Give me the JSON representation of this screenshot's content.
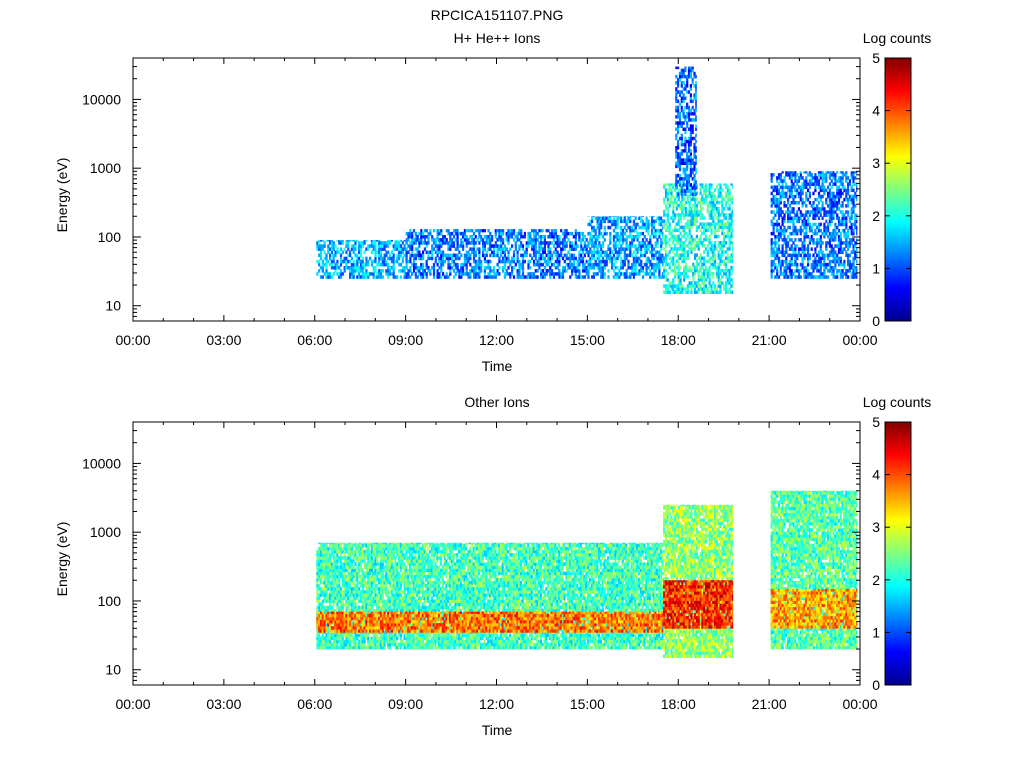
{
  "title": "RPCICA151107.PNG",
  "chart_data": [
    {
      "type": "heatmap",
      "title": "H+ He++ Ions",
      "xlabel": "Time",
      "ylabel": "Energy (eV)",
      "xlim": [
        "00:00",
        "24:00"
      ],
      "ylim": [
        6,
        40000
      ],
      "yscale": "log",
      "x_ticks": [
        "00:00",
        "03:00",
        "06:00",
        "09:00",
        "12:00",
        "15:00",
        "18:00",
        "21:00",
        "00:00"
      ],
      "y_ticks": [
        "10",
        "100",
        "1000",
        "10000"
      ],
      "colorbar": {
        "label": "Log counts",
        "range": [
          0,
          5
        ],
        "ticks": [
          "0",
          "1",
          "2",
          "3",
          "4",
          "5"
        ],
        "colormap": "jet"
      },
      "data_coverage_hours": [
        [
          6.05,
          19.8
        ],
        [
          21.05,
          23.9
        ]
      ],
      "bands": [
        {
          "t_start": 6.05,
          "t_end": 9.0,
          "e_min": 25,
          "e_max": 90,
          "log_counts": 1.5
        },
        {
          "t_start": 9.0,
          "t_end": 15.0,
          "e_min": 25,
          "e_max": 130,
          "log_counts": 1.2
        },
        {
          "t_start": 15.0,
          "t_end": 17.5,
          "e_min": 25,
          "e_max": 200,
          "log_counts": 1.4
        },
        {
          "t_start": 17.5,
          "t_end": 19.8,
          "e_min": 15,
          "e_max": 600,
          "log_counts": 2.0
        },
        {
          "t_start": 17.9,
          "t_end": 18.6,
          "e_min": 400,
          "e_max": 30000,
          "log_counts": 1.1
        },
        {
          "t_start": 21.05,
          "t_end": 23.9,
          "e_min": 25,
          "e_max": 900,
          "log_counts": 1.2
        }
      ]
    },
    {
      "type": "heatmap",
      "title": "Other Ions",
      "xlabel": "Time",
      "ylabel": "Energy (eV)",
      "xlim": [
        "00:00",
        "24:00"
      ],
      "ylim": [
        6,
        40000
      ],
      "yscale": "log",
      "x_ticks": [
        "00:00",
        "03:00",
        "06:00",
        "09:00",
        "12:00",
        "15:00",
        "18:00",
        "21:00",
        "00:00"
      ],
      "y_ticks": [
        "10",
        "100",
        "1000",
        "10000"
      ],
      "colorbar": {
        "label": "Log counts",
        "range": [
          0,
          5
        ],
        "ticks": [
          "0",
          "1",
          "2",
          "3",
          "4",
          "5"
        ],
        "colormap": "jet"
      },
      "data_coverage_hours": [
        [
          6.05,
          19.8
        ],
        [
          21.05,
          23.9
        ]
      ],
      "bands": [
        {
          "t_start": 6.05,
          "t_end": 17.5,
          "e_min": 20,
          "e_max": 700,
          "log_counts": 2.2
        },
        {
          "t_start": 6.05,
          "t_end": 17.5,
          "e_min": 35,
          "e_max": 70,
          "log_counts": 3.8
        },
        {
          "t_start": 17.5,
          "t_end": 19.8,
          "e_min": 15,
          "e_max": 2500,
          "log_counts": 2.6
        },
        {
          "t_start": 17.5,
          "t_end": 19.8,
          "e_min": 40,
          "e_max": 200,
          "log_counts": 4.2
        },
        {
          "t_start": 21.05,
          "t_end": 23.9,
          "e_min": 20,
          "e_max": 4000,
          "log_counts": 2.3
        },
        {
          "t_start": 21.05,
          "t_end": 23.9,
          "e_min": 40,
          "e_max": 150,
          "log_counts": 3.6
        }
      ]
    }
  ]
}
